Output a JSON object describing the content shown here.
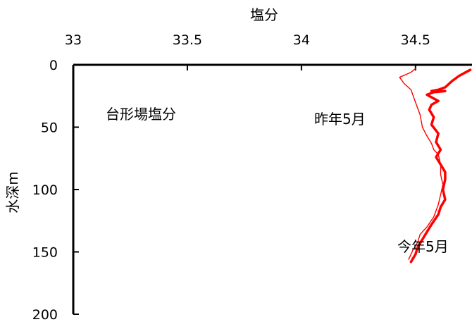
{
  "chart_data": {
    "type": "line",
    "title": "",
    "xlabel": "塩分",
    "ylabel": "水深m",
    "annotation": "台形場塩分",
    "x_axis_position": "top",
    "y_axis_inverted": true,
    "xlim": [
      33,
      34.8
    ],
    "ylim": [
      0,
      200
    ],
    "x_ticks": [
      33,
      33.5,
      34,
      34.5
    ],
    "x_tick_labels": [
      "33",
      "33.5",
      "34",
      "34.5"
    ],
    "y_ticks": [
      0,
      50,
      100,
      150,
      200
    ],
    "y_tick_labels": [
      "0",
      "50",
      "100",
      "150",
      "200"
    ],
    "grid": false,
    "series": [
      {
        "name": "昨年5月",
        "color": "#ff0000",
        "line_weight": "thin",
        "points": [
          [
            34.5,
            3
          ],
          [
            34.48,
            6
          ],
          [
            34.43,
            10
          ],
          [
            34.45,
            15
          ],
          [
            34.48,
            20
          ],
          [
            34.5,
            30
          ],
          [
            34.52,
            40
          ],
          [
            34.53,
            50
          ],
          [
            34.55,
            57
          ],
          [
            34.57,
            63
          ],
          [
            34.58,
            68
          ],
          [
            34.6,
            72
          ],
          [
            34.61,
            80
          ],
          [
            34.61,
            88
          ],
          [
            34.62,
            96
          ],
          [
            34.61,
            104
          ],
          [
            34.6,
            112
          ],
          [
            34.58,
            122
          ],
          [
            34.55,
            130
          ],
          [
            34.52,
            136
          ],
          [
            34.51,
            142
          ],
          [
            34.49,
            148
          ],
          [
            34.47,
            156
          ]
        ]
      },
      {
        "name": "今年5月",
        "color": "#ff0000",
        "line_weight": "thick",
        "points": [
          [
            34.74,
            4
          ],
          [
            34.72,
            6
          ],
          [
            34.69,
            9
          ],
          [
            34.66,
            13
          ],
          [
            34.63,
            18
          ],
          [
            34.6,
            20
          ],
          [
            34.57,
            21
          ],
          [
            34.63,
            21
          ],
          [
            34.58,
            22
          ],
          [
            34.55,
            24
          ],
          [
            34.6,
            29
          ],
          [
            34.57,
            32
          ],
          [
            34.56,
            36
          ],
          [
            34.58,
            42
          ],
          [
            34.57,
            48
          ],
          [
            34.6,
            55
          ],
          [
            34.59,
            62
          ],
          [
            34.61,
            68
          ],
          [
            34.59,
            74
          ],
          [
            34.61,
            80
          ],
          [
            34.63,
            86
          ],
          [
            34.63,
            92
          ],
          [
            34.62,
            100
          ],
          [
            34.63,
            108
          ],
          [
            34.61,
            114
          ],
          [
            34.6,
            120
          ],
          [
            34.57,
            128
          ],
          [
            34.55,
            134
          ],
          [
            34.53,
            140
          ],
          [
            34.51,
            146
          ],
          [
            34.5,
            152
          ],
          [
            34.48,
            158
          ]
        ]
      }
    ]
  }
}
